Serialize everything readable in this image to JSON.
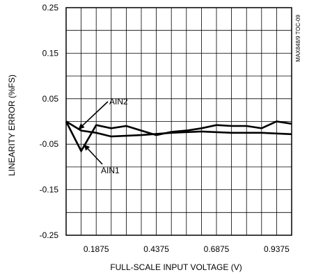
{
  "chart_data": {
    "type": "line",
    "title": "",
    "xlabel": "FULL-SCALE INPUT VOLTAGE (V)",
    "ylabel": "LINEARITY ERROR (%FS)",
    "xlim": [
      0.0625,
      1.0
    ],
    "ylim": [
      -0.25,
      0.25
    ],
    "x_ticks": [
      0.1875,
      0.4375,
      0.6875,
      0.9375
    ],
    "x_tick_labels": [
      "0.1875",
      "0.4375",
      "0.6875",
      "0.9375"
    ],
    "y_ticks": [
      0.25,
      0.15,
      0.05,
      -0.05,
      -0.15,
      -0.25
    ],
    "y_tick_labels": [
      "0.25",
      "0.15",
      "0.05",
      "-0.05",
      "-0.15",
      "-0.25"
    ],
    "grid": true,
    "doc_id": "MAX848/9 TOC-09",
    "series": [
      {
        "name": "AIN1",
        "x": [
          0.0625,
          0.125,
          0.1875,
          0.25,
          0.375,
          0.5,
          0.625,
          0.75,
          0.875,
          1.0
        ],
        "y": [
          0.0,
          -0.02,
          -0.025,
          -0.033,
          -0.03,
          -0.025,
          -0.022,
          -0.025,
          -0.025,
          -0.028
        ]
      },
      {
        "name": "AIN2",
        "x": [
          0.0625,
          0.125,
          0.1875,
          0.25,
          0.3125,
          0.375,
          0.4375,
          0.5,
          0.5625,
          0.625,
          0.6875,
          0.75,
          0.8125,
          0.875,
          0.9375,
          1.0
        ],
        "y": [
          0.0,
          -0.065,
          -0.008,
          -0.015,
          -0.01,
          -0.02,
          -0.03,
          -0.023,
          -0.02,
          -0.015,
          -0.008,
          -0.01,
          -0.01,
          -0.015,
          0.0,
          -0.005
        ]
      }
    ],
    "annotations": [
      {
        "text": "AIN2",
        "series": "AIN2"
      },
      {
        "text": "AIN1",
        "series": "AIN1"
      }
    ]
  }
}
